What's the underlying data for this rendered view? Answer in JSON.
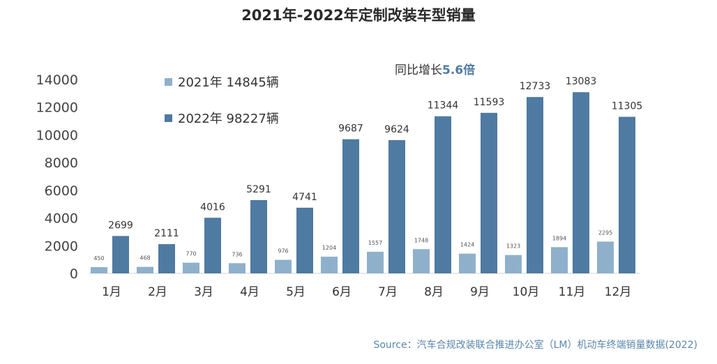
{
  "chart_data": {
    "type": "bar",
    "title": "2021年-2022年定制改装车型销量",
    "categories": [
      "1月",
      "2月",
      "3月",
      "4月",
      "5月",
      "6月",
      "7月",
      "8月",
      "9月",
      "10月",
      "11月",
      "12月"
    ],
    "series": [
      {
        "name": "2021年 14845辆",
        "color": "#8fb0cb",
        "values": [
          450,
          468,
          770,
          736,
          976,
          1204,
          1557,
          1748,
          1424,
          1323,
          1894,
          2295
        ]
      },
      {
        "name": "2022年 98227辆",
        "color": "#4f7aa1",
        "values": [
          2699,
          2111,
          4016,
          5291,
          4741,
          9687,
          9624,
          11344,
          11593,
          12733,
          13083,
          11305
        ]
      }
    ],
    "ylim": [
      0,
      14000
    ],
    "yticks": [
      0,
      2000,
      4000,
      6000,
      8000,
      10000,
      12000,
      14000
    ],
    "grid": false,
    "legend_position": "top-left",
    "annotation": {
      "prefix": "同比增长",
      "highlight": "5.6倍"
    },
    "source": "Source：汽车合规改装联合推进办公室（LM）机动车终端销量数据(2022)"
  }
}
